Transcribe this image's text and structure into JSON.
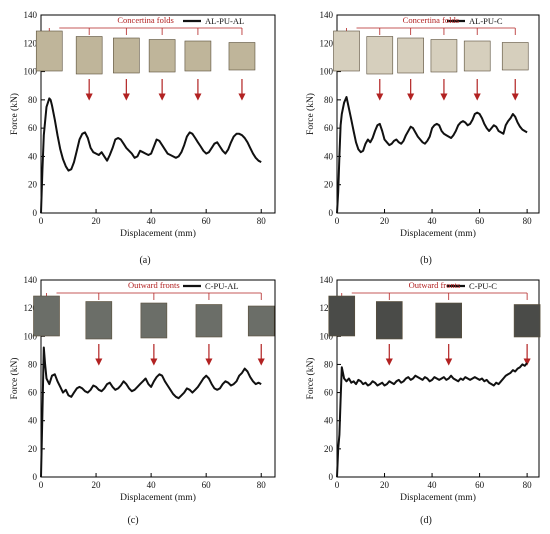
{
  "chart_data": [
    {
      "type": "line",
      "panel_label": "(a)",
      "legend": "AL-PU-AL",
      "annotation": "Concertina folds",
      "xlabel": "Displacement (mm)",
      "ylabel": "Force (kN)",
      "xlim": [
        0,
        85
      ],
      "ylim": [
        0,
        140
      ],
      "xticks": [
        "0",
        "20",
        "40",
        "60",
        "80"
      ],
      "yticks": [
        "0",
        "20",
        "40",
        "60",
        "80",
        "100",
        "120",
        "140"
      ],
      "grid": false,
      "legend_position": "top-right",
      "colors": {
        "line": "#111111",
        "annotation": "#b22222",
        "arrow": "#b22222",
        "photo": "#bfb59a"
      },
      "photo_markers_x": [
        3,
        17.5,
        31,
        44,
        57,
        73
      ],
      "arrow_markers_x": [
        17.5,
        31,
        44,
        57,
        73
      ],
      "x": [
        0,
        0.5,
        1,
        2,
        3,
        3.5,
        4,
        5,
        6,
        7,
        8,
        9,
        10,
        11,
        12,
        13,
        14,
        15,
        16,
        17,
        18,
        19,
        20,
        21,
        22,
        23,
        24,
        25,
        26,
        27,
        28,
        29,
        30,
        31,
        32,
        33,
        34,
        35,
        36,
        37,
        38,
        39,
        40,
        41,
        42,
        43,
        44,
        45,
        46,
        47,
        48,
        49,
        50,
        51,
        52,
        53,
        54,
        55,
        56,
        57,
        58,
        59,
        60,
        61,
        62,
        63,
        64,
        65,
        66,
        67,
        68,
        69,
        70,
        71,
        72,
        73,
        74,
        75,
        76,
        77,
        78,
        79,
        80
      ],
      "y": [
        0,
        30,
        55,
        75,
        81,
        80,
        76,
        66,
        55,
        45,
        38,
        33,
        30,
        31,
        36,
        44,
        52,
        56,
        57,
        53,
        46,
        43,
        42,
        41,
        43,
        40,
        37,
        41,
        46,
        52,
        53,
        52,
        49,
        46,
        44,
        42,
        39,
        40,
        44,
        43,
        42,
        41,
        42,
        47,
        52,
        51,
        48,
        45,
        42,
        41,
        40,
        39,
        40,
        43,
        48,
        54,
        57,
        56,
        53,
        50,
        47,
        44,
        42,
        43,
        46,
        49,
        50,
        47,
        44,
        42,
        45,
        50,
        54,
        56,
        56,
        55,
        53,
        50,
        46,
        42,
        39,
        37,
        36
      ]
    },
    {
      "type": "line",
      "panel_label": "(b)",
      "legend": "AL-PU-C",
      "annotation": "Concertina folds",
      "xlabel": "Displacement (mm)",
      "ylabel": "Force (kN)",
      "xlim": [
        0,
        85
      ],
      "ylim": [
        0,
        140
      ],
      "xticks": [
        "0",
        "20",
        "40",
        "60",
        "80"
      ],
      "yticks": [
        "0",
        "20",
        "40",
        "60",
        "80",
        "100",
        "120",
        "140"
      ],
      "grid": false,
      "legend_position": "top-right",
      "colors": {
        "line": "#111111",
        "annotation": "#b22222",
        "arrow": "#b22222",
        "photo": "#d6cfbd"
      },
      "photo_markers_x": [
        4,
        18,
        31,
        45,
        59,
        75
      ],
      "arrow_markers_x": [
        18,
        31,
        45,
        59,
        75
      ],
      "x": [
        0,
        0.5,
        1,
        1.5,
        2,
        3,
        4,
        5,
        6,
        7,
        8,
        9,
        10,
        11,
        12,
        13,
        14,
        15,
        16,
        17,
        18,
        19,
        20,
        21,
        22,
        23,
        24,
        25,
        26,
        27,
        28,
        29,
        30,
        31,
        32,
        33,
        34,
        35,
        36,
        37,
        38,
        39,
        40,
        41,
        42,
        43,
        44,
        45,
        46,
        47,
        48,
        49,
        50,
        51,
        52,
        53,
        54,
        55,
        56,
        57,
        58,
        59,
        60,
        61,
        62,
        63,
        64,
        65,
        66,
        67,
        68,
        69,
        70,
        71,
        72,
        73,
        74,
        75,
        76,
        77,
        78,
        79,
        80
      ],
      "y": [
        0,
        15,
        40,
        62,
        70,
        78,
        82,
        74,
        66,
        58,
        50,
        45,
        43,
        44,
        49,
        52,
        50,
        53,
        58,
        62,
        63,
        58,
        52,
        50,
        48,
        49,
        51,
        52,
        50,
        49,
        51,
        55,
        58,
        61,
        60,
        57,
        54,
        52,
        50,
        49,
        51,
        54,
        60,
        62,
        63,
        62,
        58,
        56,
        55,
        54,
        53,
        55,
        58,
        62,
        64,
        65,
        64,
        62,
        63,
        66,
        70,
        71,
        70,
        67,
        63,
        60,
        58,
        60,
        62,
        61,
        58,
        57,
        56,
        62,
        65,
        67,
        70,
        68,
        64,
        61,
        59,
        58,
        57
      ]
    },
    {
      "type": "line",
      "panel_label": "(c)",
      "legend": "C-PU-AL",
      "annotation": "Outward fronts",
      "xlabel": "Displacement (mm)",
      "ylabel": "Force (kN)",
      "xlim": [
        0,
        85
      ],
      "ylim": [
        0,
        140
      ],
      "xticks": [
        "0",
        "20",
        "40",
        "60",
        "80"
      ],
      "yticks": [
        "0",
        "20",
        "40",
        "60",
        "80",
        "100",
        "120",
        "140"
      ],
      "grid": false,
      "legend_position": "top-right",
      "colors": {
        "line": "#111111",
        "annotation": "#b22222",
        "arrow": "#b22222",
        "photo": "#6b6e68"
      },
      "photo_markers_x": [
        2,
        21,
        41,
        61,
        80
      ],
      "arrow_markers_x": [
        21,
        41,
        61,
        80
      ],
      "x": [
        0,
        0.5,
        1,
        1.5,
        2,
        3,
        4,
        5,
        6,
        7,
        8,
        9,
        10,
        11,
        12,
        13,
        14,
        15,
        16,
        17,
        18,
        19,
        20,
        21,
        22,
        23,
        24,
        25,
        26,
        27,
        28,
        29,
        30,
        31,
        32,
        33,
        34,
        35,
        36,
        37,
        38,
        39,
        40,
        41,
        42,
        43,
        44,
        45,
        46,
        47,
        48,
        49,
        50,
        51,
        52,
        53,
        54,
        55,
        56,
        57,
        58,
        59,
        60,
        61,
        62,
        63,
        64,
        65,
        66,
        67,
        68,
        69,
        70,
        71,
        72,
        73,
        74,
        75,
        76,
        77,
        78,
        79,
        80
      ],
      "y": [
        0,
        45,
        92,
        80,
        70,
        66,
        72,
        73,
        68,
        64,
        60,
        62,
        58,
        57,
        60,
        63,
        64,
        63,
        61,
        60,
        62,
        65,
        64,
        62,
        61,
        63,
        66,
        67,
        64,
        62,
        63,
        65,
        68,
        66,
        63,
        61,
        62,
        64,
        66,
        68,
        70,
        66,
        64,
        68,
        71,
        73,
        72,
        68,
        65,
        62,
        59,
        57,
        56,
        58,
        60,
        63,
        62,
        60,
        62,
        64,
        67,
        70,
        72,
        70,
        66,
        63,
        62,
        63,
        66,
        68,
        67,
        65,
        66,
        68,
        72,
        74,
        77,
        75,
        71,
        68,
        66,
        67,
        66
      ]
    },
    {
      "type": "line",
      "panel_label": "(d)",
      "legend": "C-PU-C",
      "annotation": "Outward fronts",
      "xlabel": "Displacement (mm)",
      "ylabel": "Force (kN)",
      "xlim": [
        0,
        85
      ],
      "ylim": [
        0,
        140
      ],
      "xticks": [
        "0",
        "20",
        "40",
        "60",
        "80"
      ],
      "yticks": [
        "0",
        "20",
        "40",
        "60",
        "80",
        "100",
        "120",
        "140"
      ],
      "grid": false,
      "legend_position": "top-right",
      "colors": {
        "line": "#111111",
        "annotation": "#b22222",
        "arrow": "#b22222",
        "photo": "#4a4b48"
      },
      "photo_markers_x": [
        2,
        22,
        47,
        80
      ],
      "arrow_markers_x": [
        22,
        47,
        80
      ],
      "x": [
        0,
        0.5,
        1,
        1.5,
        2,
        3,
        4,
        5,
        6,
        7,
        8,
        9,
        10,
        11,
        12,
        13,
        14,
        15,
        16,
        17,
        18,
        19,
        20,
        21,
        22,
        23,
        24,
        25,
        26,
        27,
        28,
        29,
        30,
        31,
        32,
        33,
        34,
        35,
        36,
        37,
        38,
        39,
        40,
        41,
        42,
        43,
        44,
        45,
        46,
        47,
        48,
        49,
        50,
        51,
        52,
        53,
        54,
        55,
        56,
        57,
        58,
        59,
        60,
        61,
        62,
        63,
        64,
        65,
        66,
        67,
        68,
        69,
        70,
        71,
        72,
        73,
        74,
        75,
        76,
        77,
        78,
        79,
        80
      ],
      "y": [
        0,
        20,
        30,
        55,
        78,
        70,
        68,
        70,
        67,
        68,
        66,
        69,
        68,
        66,
        67,
        65,
        66,
        68,
        67,
        65,
        66,
        67,
        65,
        66,
        68,
        67,
        66,
        68,
        69,
        67,
        68,
        70,
        71,
        69,
        70,
        72,
        71,
        70,
        69,
        71,
        70,
        68,
        69,
        71,
        70,
        69,
        70,
        71,
        69,
        70,
        72,
        70,
        69,
        68,
        70,
        69,
        71,
        70,
        69,
        70,
        71,
        70,
        69,
        70,
        68,
        69,
        67,
        66,
        65,
        67,
        66,
        68,
        70,
        72,
        73,
        74,
        76,
        75,
        77,
        78,
        80,
        79,
        81
      ]
    }
  ]
}
